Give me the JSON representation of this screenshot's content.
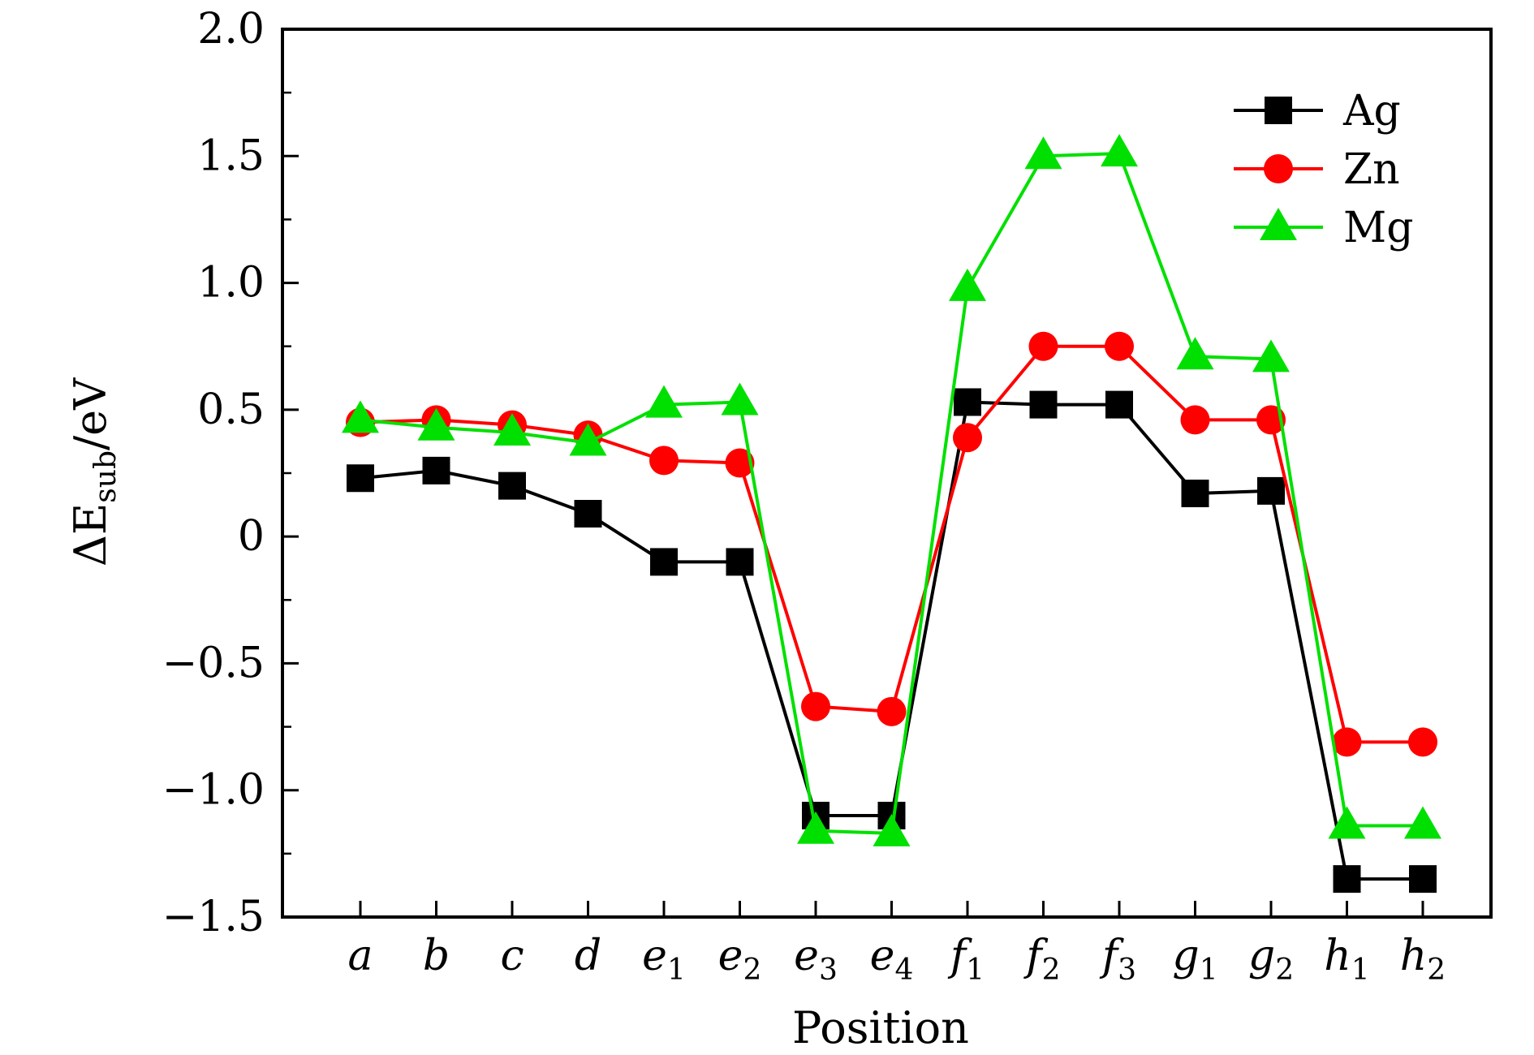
{
  "chart_data": {
    "type": "line",
    "title": "",
    "xlabel": "Position",
    "ylabel": {
      "prefix": "ΔE",
      "sub": "sub",
      "suffix": "/eV"
    },
    "ylim": [
      -1.5,
      2.0
    ],
    "yticks": [
      {
        "value": 2.0,
        "label": "2.0"
      },
      {
        "value": 1.5,
        "label": "1.5"
      },
      {
        "value": 1.0,
        "label": "1.0"
      },
      {
        "value": 0.5,
        "label": "0.5"
      },
      {
        "value": 0,
        "label": "0"
      },
      {
        "value": -0.5,
        "label": "−0.5"
      },
      {
        "value": -1.0,
        "label": "−1.0"
      },
      {
        "value": -1.5,
        "label": "−1.5"
      }
    ],
    "categories": [
      {
        "base": "a",
        "sub": ""
      },
      {
        "base": "b",
        "sub": ""
      },
      {
        "base": "c",
        "sub": ""
      },
      {
        "base": "d",
        "sub": ""
      },
      {
        "base": "e",
        "sub": "1"
      },
      {
        "base": "e",
        "sub": "2"
      },
      {
        "base": "e",
        "sub": "3"
      },
      {
        "base": "e",
        "sub": "4"
      },
      {
        "base": "f",
        "sub": "1"
      },
      {
        "base": "f",
        "sub": "2"
      },
      {
        "base": "f",
        "sub": "3"
      },
      {
        "base": "g",
        "sub": "1"
      },
      {
        "base": "g",
        "sub": "2"
      },
      {
        "base": "h",
        "sub": "1"
      },
      {
        "base": "h",
        "sub": "2"
      }
    ],
    "series": [
      {
        "name": "Ag",
        "color": "#000000",
        "marker": "square",
        "values": [
          0.23,
          0.26,
          0.2,
          0.09,
          -0.1,
          -0.1,
          -1.1,
          -1.1,
          0.53,
          0.52,
          0.52,
          0.17,
          0.18,
          -1.35,
          -1.35
        ]
      },
      {
        "name": "Zn",
        "color": "#ff0000",
        "marker": "circle",
        "values": [
          0.45,
          0.46,
          0.44,
          0.4,
          0.3,
          0.29,
          -0.67,
          -0.69,
          0.39,
          0.75,
          0.75,
          0.46,
          0.46,
          -0.81,
          -0.81
        ]
      },
      {
        "name": "Mg",
        "color": "#00e000",
        "marker": "triangle",
        "values": [
          0.46,
          0.43,
          0.41,
          0.37,
          0.52,
          0.53,
          -1.16,
          -1.17,
          0.98,
          1.5,
          1.51,
          0.71,
          0.7,
          -1.14,
          -1.14
        ]
      }
    ],
    "grid": false,
    "legend": "top-right"
  }
}
